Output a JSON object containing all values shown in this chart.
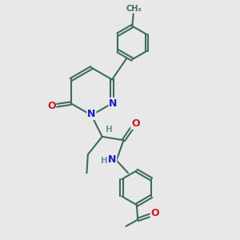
{
  "bg_color": "#e8e8e8",
  "bond_color": "#3d6b5e",
  "nitrogen_color": "#1a1acc",
  "oxygen_color": "#cc1a1a",
  "h_color": "#6a9a8a",
  "lw": 1.5,
  "dbo": 0.06,
  "fs": 9,
  "fig_w": 3.0,
  "fig_h": 3.0,
  "dpi": 100,
  "xlim": [
    0,
    10
  ],
  "ylim": [
    0,
    10
  ]
}
